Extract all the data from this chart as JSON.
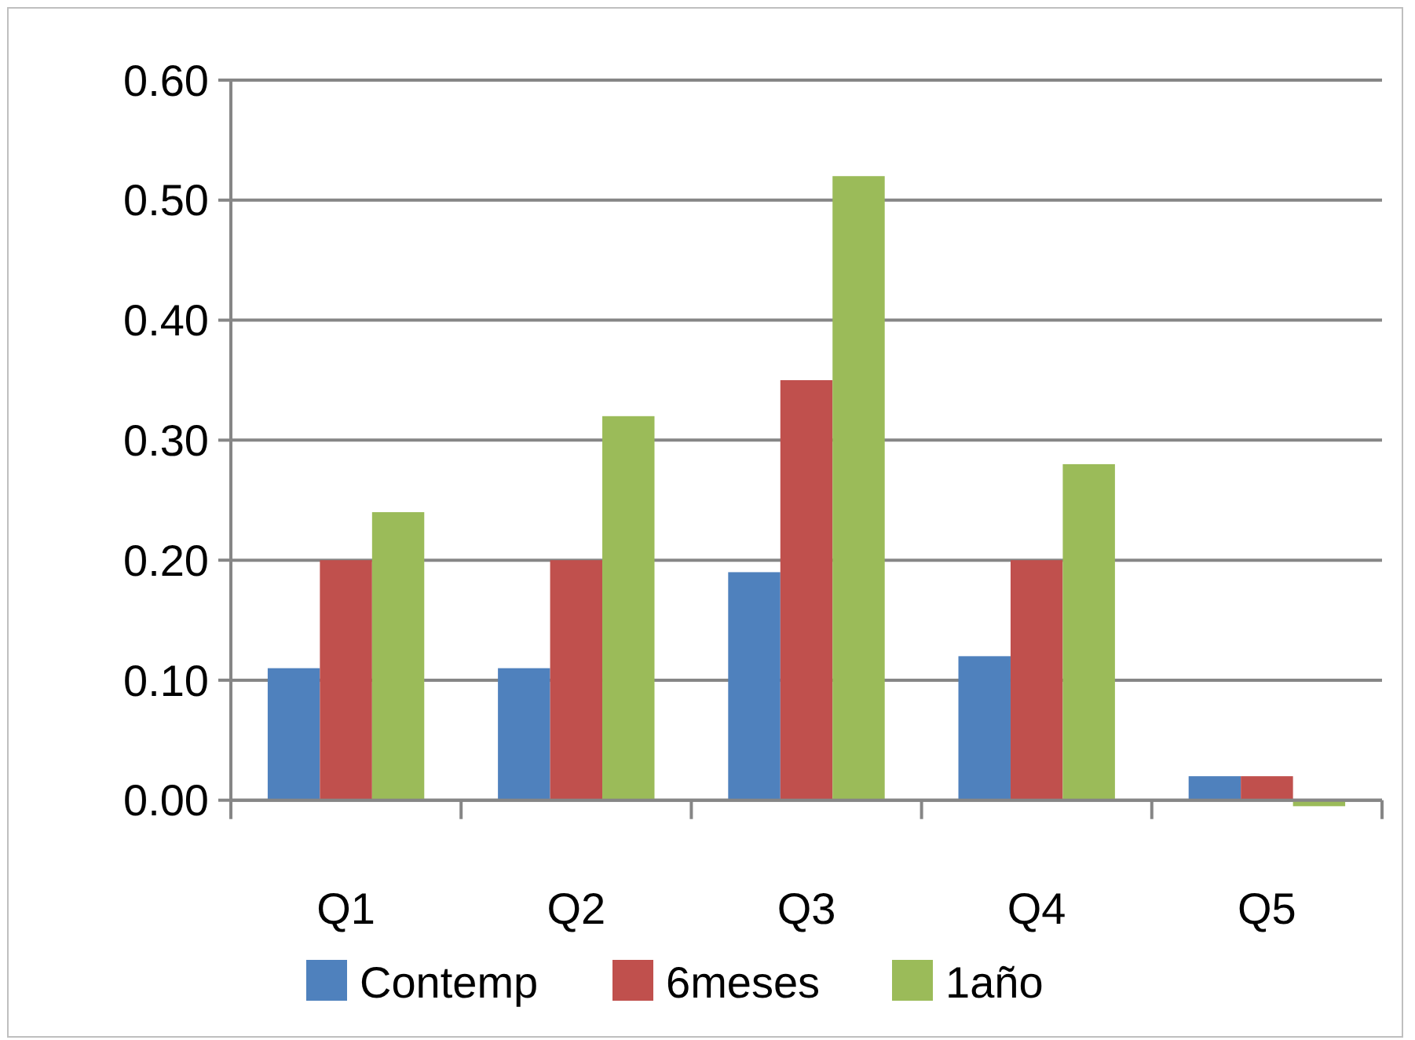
{
  "chart_data": {
    "type": "bar",
    "categories": [
      "Q1",
      "Q2",
      "Q3",
      "Q4",
      "Q5"
    ],
    "series": [
      {
        "name": "Contemp",
        "color": "#4f81bd",
        "values": [
          0.11,
          0.11,
          0.19,
          0.12,
          0.02
        ]
      },
      {
        "name": "6meses",
        "color": "#c0504d",
        "values": [
          0.2,
          0.2,
          0.35,
          0.2,
          0.02
        ]
      },
      {
        "name": "1año",
        "color": "#9bbb59",
        "values": [
          0.24,
          0.32,
          0.52,
          0.28,
          -0.005
        ]
      }
    ],
    "ylim": [
      -0.01,
      0.6
    ],
    "yticks": [
      {
        "value": 0,
        "label": "0.00"
      },
      {
        "value": 0.1,
        "label": "0.10"
      },
      {
        "value": 0.2,
        "label": "0.20"
      },
      {
        "value": 0.3,
        "label": "0.30"
      },
      {
        "value": 0.4,
        "label": "0.40"
      },
      {
        "value": 0.5,
        "label": "0.50"
      },
      {
        "value": 0.6,
        "label": "0.60"
      }
    ],
    "grid": "y",
    "legend": "bottom"
  }
}
